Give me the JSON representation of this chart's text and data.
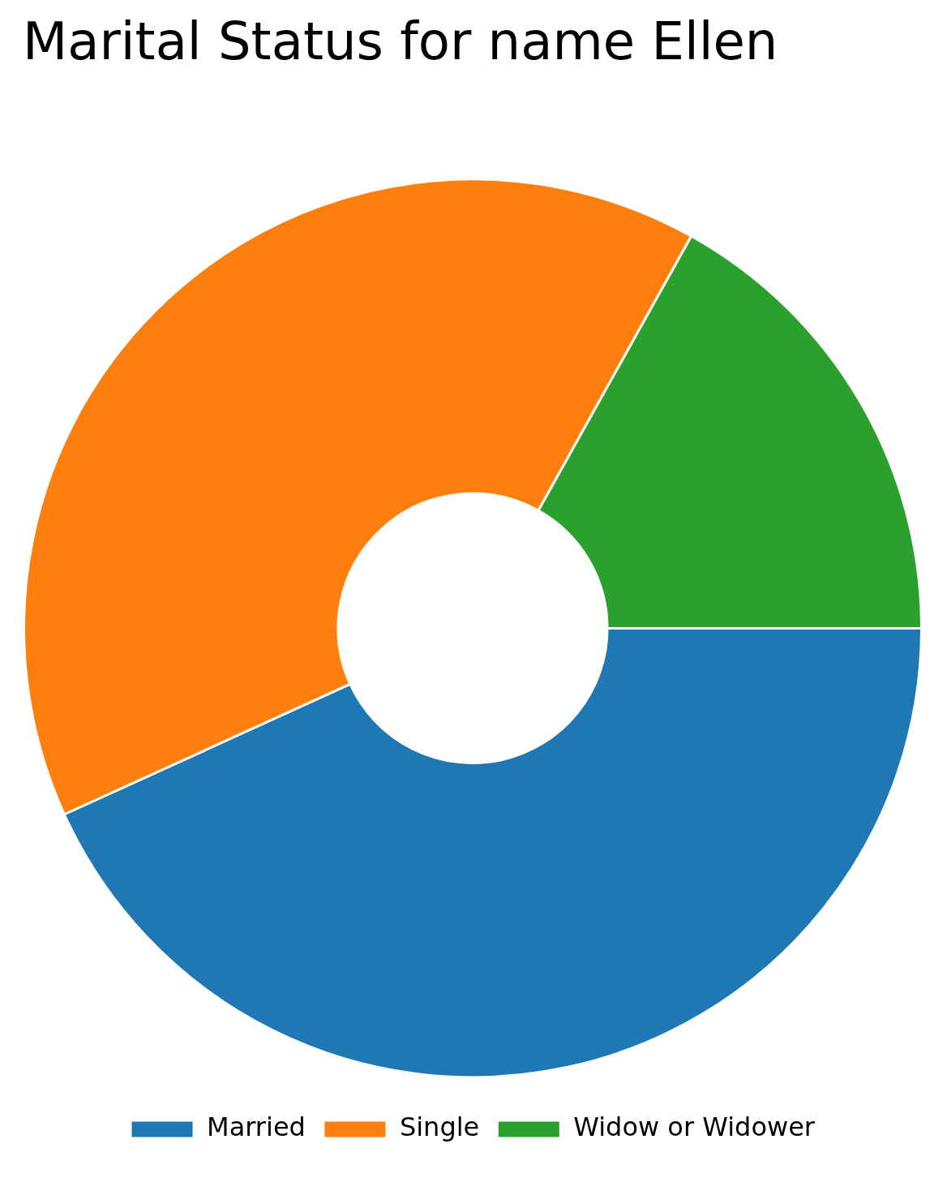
{
  "chart_data": {
    "type": "donut",
    "title": "Marital Status for name Ellen",
    "categories": [
      "Married",
      "Single",
      "Widow or Widower"
    ],
    "values": [
      43.2,
      39.9,
      16.9
    ],
    "colors": [
      "#1f77b4",
      "#ff7f0e",
      "#2ca02c"
    ],
    "legend": "bottom"
  }
}
